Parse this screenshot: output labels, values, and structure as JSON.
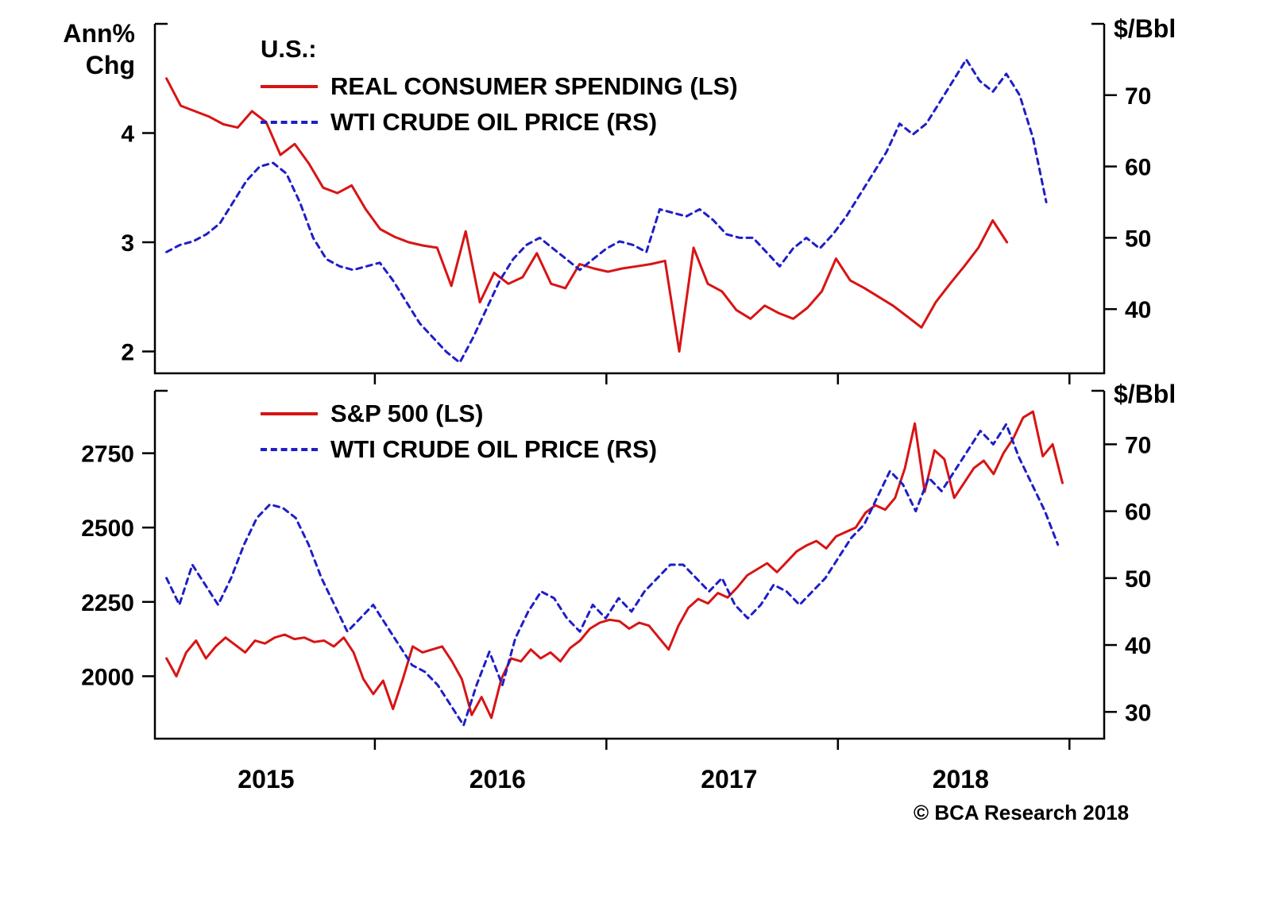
{
  "footer": {
    "copyright": "© BCA Research 2018"
  },
  "colors": {
    "spending_red": "#d81414",
    "oil_blue": "#1e1ec8",
    "axis_black": "#000000"
  },
  "chart_data": [
    {
      "type": "line",
      "panel": "top",
      "title": "U.S.:",
      "left_axis": {
        "label": "Ann% Chg",
        "label_lines": [
          "Ann%",
          "Chg"
        ],
        "ticks": [
          2,
          3,
          4
        ],
        "range": [
          1.8,
          5.0
        ]
      },
      "right_axis": {
        "label": "$/Bbl",
        "ticks": [
          40,
          50,
          60,
          70
        ],
        "range": [
          31,
          80
        ]
      },
      "x_axis": {
        "range": [
          2014.5,
          2018.6
        ],
        "year_labels": [
          2015,
          2016,
          2017,
          2018
        ]
      },
      "legend_position": "top-left-inside",
      "grid": false,
      "series": [
        {
          "name": "REAL CONSUMER SPENDING (LS)",
          "axis": "left",
          "color": "#d81414",
          "style": "solid",
          "x_start": 2014.55,
          "x_end": 2018.18,
          "values": [
            4.5,
            4.25,
            4.2,
            4.15,
            4.08,
            4.05,
            4.2,
            4.1,
            3.8,
            3.9,
            3.72,
            3.5,
            3.45,
            3.52,
            3.3,
            3.12,
            3.05,
            3.0,
            2.97,
            2.95,
            2.6,
            3.1,
            2.45,
            2.72,
            2.62,
            2.68,
            2.9,
            2.62,
            2.58,
            2.8,
            2.76,
            2.73,
            2.76,
            2.78,
            2.8,
            2.83,
            2.0,
            2.95,
            2.62,
            2.55,
            2.38,
            2.3,
            2.42,
            2.35,
            2.3,
            2.4,
            2.55,
            2.85,
            2.65,
            2.58,
            2.5,
            2.42,
            2.32,
            2.22,
            2.45,
            2.62,
            2.78,
            2.95,
            3.2,
            3.0
          ]
        },
        {
          "name": "WTI CRUDE OIL PRICE (RS)",
          "axis": "right",
          "color": "#1e1ec8",
          "style": "dashed",
          "x_start": 2014.55,
          "x_end": 2018.35,
          "values": [
            48,
            49,
            49.5,
            50.5,
            52,
            55,
            58,
            60,
            60.5,
            59,
            55,
            50,
            47,
            46,
            45.5,
            46,
            46.5,
            44,
            41,
            38,
            36,
            34,
            32.5,
            36,
            40,
            44,
            47,
            49,
            50,
            48.5,
            47,
            45.5,
            47,
            48.5,
            49.5,
            49,
            48,
            54,
            53.5,
            53,
            54,
            52.5,
            50.5,
            50,
            50,
            48,
            46,
            48.5,
            50,
            48.5,
            50.5,
            53,
            56,
            59,
            62,
            66,
            64.5,
            66,
            69,
            72,
            75,
            72,
            70.5,
            73,
            70,
            64,
            55
          ]
        }
      ]
    },
    {
      "type": "line",
      "panel": "bottom",
      "title": "",
      "left_axis": {
        "label": "",
        "ticks": [
          2000,
          2250,
          2500,
          2750
        ],
        "range": [
          1790,
          2960
        ]
      },
      "right_axis": {
        "label": "$/Bbl",
        "ticks": [
          30,
          40,
          50,
          60,
          70
        ],
        "range": [
          26,
          78
        ]
      },
      "x_axis": {
        "range": [
          2014.5,
          2018.6
        ],
        "year_labels": [
          2015,
          2016,
          2017,
          2018
        ]
      },
      "legend_position": "top-left-inside",
      "grid": false,
      "series": [
        {
          "name": "S&P 500 (LS)",
          "axis": "left",
          "color": "#d81414",
          "style": "solid",
          "x_start": 2014.55,
          "x_end": 2018.42,
          "values": [
            2060,
            2000,
            2080,
            2120,
            2060,
            2100,
            2130,
            2105,
            2080,
            2120,
            2110,
            2130,
            2140,
            2125,
            2130,
            2115,
            2120,
            2100,
            2130,
            2080,
            1990,
            1940,
            1985,
            1890,
            1990,
            2100,
            2080,
            2090,
            2100,
            2050,
            1990,
            1870,
            1930,
            1860,
            1990,
            2060,
            2050,
            2090,
            2060,
            2080,
            2050,
            2095,
            2120,
            2160,
            2180,
            2190,
            2185,
            2160,
            2180,
            2170,
            2130,
            2090,
            2170,
            2230,
            2260,
            2245,
            2280,
            2265,
            2300,
            2340,
            2360,
            2380,
            2350,
            2385,
            2420,
            2440,
            2455,
            2430,
            2470,
            2485,
            2500,
            2550,
            2575,
            2560,
            2600,
            2700,
            2850,
            2620,
            2760,
            2730,
            2600,
            2650,
            2700,
            2725,
            2680,
            2750,
            2800,
            2870,
            2890,
            2740,
            2780,
            2650
          ]
        },
        {
          "name": "WTI CRUDE OIL PRICE (RS)",
          "axis": "right",
          "color": "#1e1ec8",
          "style": "dashed",
          "x_start": 2014.55,
          "x_end": 2018.4,
          "values": [
            50,
            46,
            52,
            49,
            46,
            50,
            55,
            59,
            61,
            60.5,
            59,
            55,
            50,
            46,
            42,
            44,
            46,
            43,
            40,
            37,
            36,
            34,
            31,
            28,
            34,
            39,
            34,
            41,
            45,
            48,
            47,
            44,
            42,
            46,
            44,
            47,
            45,
            48,
            50,
            52,
            52,
            50,
            48,
            50,
            46,
            44,
            46,
            49,
            48,
            46,
            48,
            50,
            53,
            56,
            58,
            62,
            66,
            64,
            60,
            65,
            63,
            66,
            69,
            72,
            70,
            73,
            68,
            64,
            60,
            55
          ]
        }
      ]
    }
  ]
}
